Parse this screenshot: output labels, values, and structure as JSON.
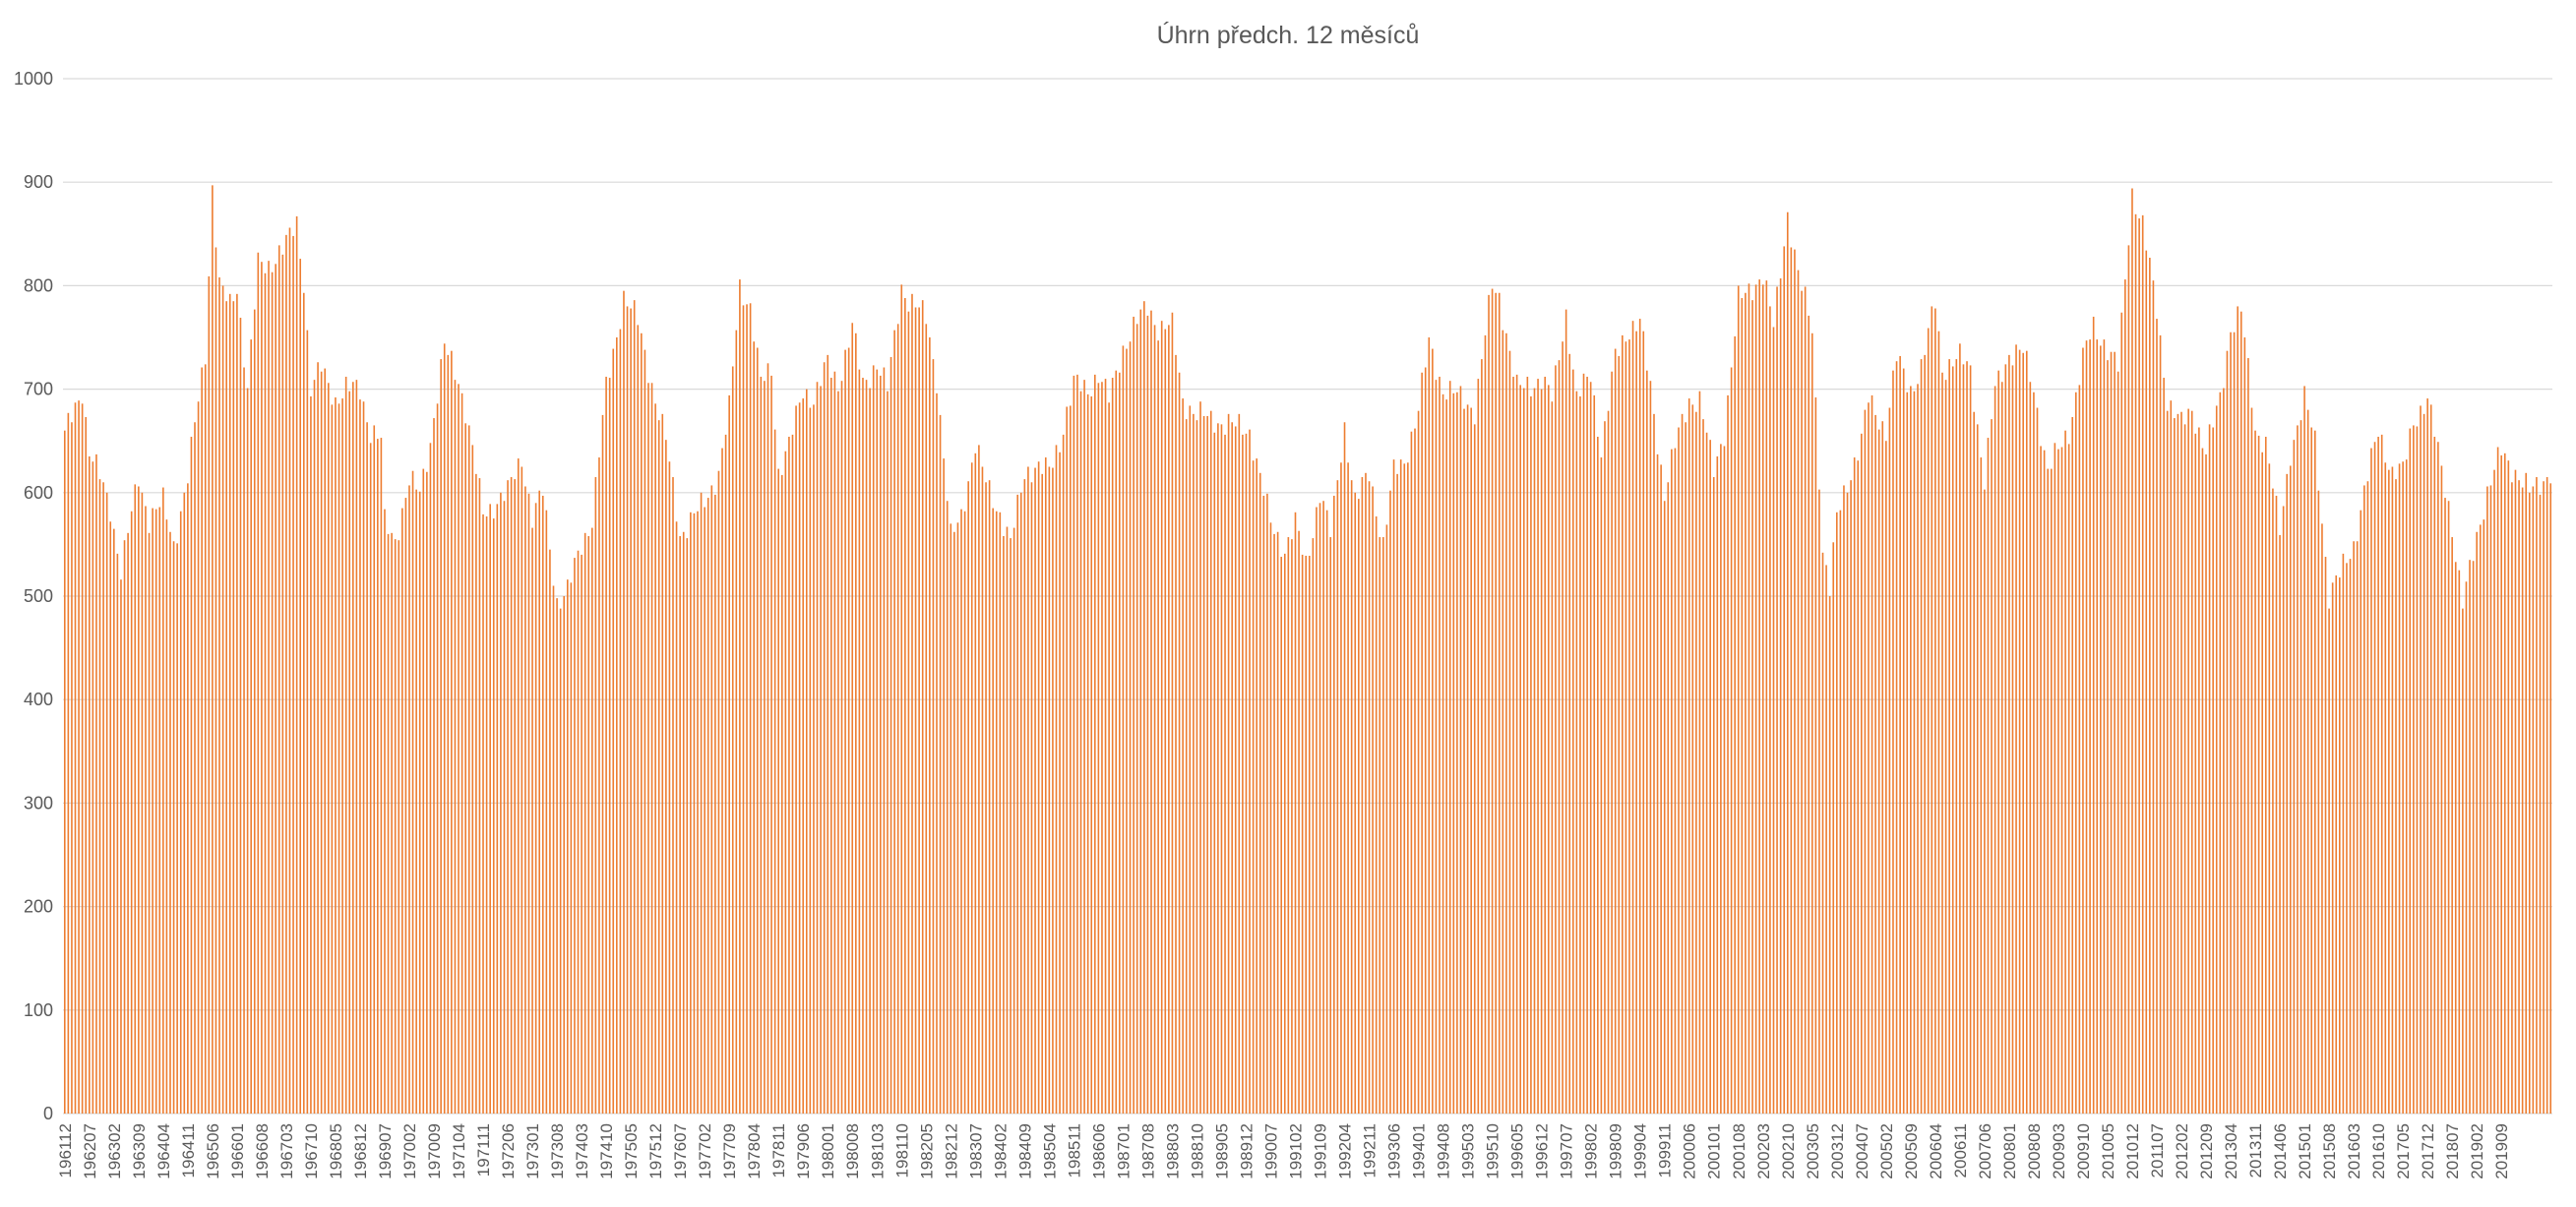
{
  "chart_data": {
    "type": "bar",
    "title": "Úhrn  předch. 12 měsíců",
    "xlabel": "",
    "ylabel": "",
    "ylim": [
      0,
      1000
    ],
    "yticks": [
      0,
      100,
      200,
      300,
      400,
      500,
      600,
      700,
      800,
      900,
      1000
    ],
    "grid": true,
    "legend": "none",
    "bar_color": "#ED7D31",
    "start_period": "196112",
    "end_period": "202011",
    "month_step": 1,
    "x_tick_labels": [
      "196112",
      "196207",
      "196302",
      "196309",
      "196404",
      "196411",
      "196506",
      "196601",
      "196608",
      "196703",
      "196710",
      "196805",
      "196812",
      "196907",
      "197002",
      "197009",
      "197104",
      "197111",
      "197206",
      "197301",
      "197308",
      "197403",
      "197410",
      "197505",
      "197512",
      "197607",
      "197702",
      "197709",
      "197804",
      "197811",
      "197906",
      "198001",
      "198008",
      "198103",
      "198110",
      "198205",
      "198212",
      "198307",
      "198402",
      "198409",
      "198504",
      "198511",
      "198606",
      "198701",
      "198708",
      "198803",
      "198810",
      "198905",
      "198912",
      "199007",
      "199102",
      "199109",
      "199204",
      "199211",
      "199306",
      "199401",
      "199408",
      "199503",
      "199510",
      "199605",
      "199612",
      "199707",
      "199802",
      "199809",
      "199904",
      "199911",
      "200006",
      "200101",
      "200108",
      "200203",
      "200210",
      "200305",
      "200312",
      "200407",
      "200502",
      "200509",
      "200604",
      "200611",
      "200706",
      "200801",
      "200808",
      "200903",
      "200910",
      "201005",
      "201012",
      "201107",
      "201202",
      "201209",
      "201304",
      "201311",
      "201406",
      "201501",
      "201508",
      "201603",
      "201610",
      "201705",
      "201712",
      "201807",
      "201902",
      "201909"
    ],
    "anchors": [
      [
        "196112",
        655
      ],
      [
        "196205",
        700
      ],
      [
        "196207",
        640
      ],
      [
        "196210",
        615
      ],
      [
        "196301",
        585
      ],
      [
        "196304",
        525
      ],
      [
        "196306",
        560
      ],
      [
        "196309",
        615
      ],
      [
        "196312",
        575
      ],
      [
        "196404",
        590
      ],
      [
        "196407",
        550
      ],
      [
        "196411",
        615
      ],
      [
        "196502",
        690
      ],
      [
        "196504",
        735
      ],
      [
        "196506",
        895
      ],
      [
        "196508",
        800
      ],
      [
        "196511",
        780
      ],
      [
        "196601",
        800
      ],
      [
        "196604",
        700
      ],
      [
        "196607",
        820
      ],
      [
        "196610",
        820
      ],
      [
        "196703",
        840
      ],
      [
        "196706",
        860
      ],
      [
        "196708",
        805
      ],
      [
        "196710",
        700
      ],
      [
        "196801",
        720
      ],
      [
        "196805",
        690
      ],
      [
        "196808",
        700
      ],
      [
        "196812",
        700
      ],
      [
        "196903",
        660
      ],
      [
        "196906",
        650
      ],
      [
        "196907",
        570
      ],
      [
        "196910",
        555
      ],
      [
        "197002",
        610
      ],
      [
        "197005",
        600
      ],
      [
        "197008",
        650
      ],
      [
        "197012",
        740
      ],
      [
        "197104",
        710
      ],
      [
        "197106",
        680
      ],
      [
        "197111",
        580
      ],
      [
        "197206",
        600
      ],
      [
        "197210",
        635
      ],
      [
        "197301",
        575
      ],
      [
        "197304",
        600
      ],
      [
        "197308",
        495
      ],
      [
        "197311",
        505
      ],
      [
        "197403",
        550
      ],
      [
        "197406",
        575
      ],
      [
        "197410",
        700
      ],
      [
        "197503",
        790
      ],
      [
        "197507",
        765
      ],
      [
        "197512",
        690
      ],
      [
        "197603",
        650
      ],
      [
        "197607",
        560
      ],
      [
        "197702",
        590
      ],
      [
        "197706",
        620
      ],
      [
        "197709",
        680
      ],
      [
        "197712",
        800
      ],
      [
        "197803",
        780
      ],
      [
        "197806",
        705
      ],
      [
        "197809",
        720
      ],
      [
        "197811",
        620
      ],
      [
        "197902",
        645
      ],
      [
        "197906",
        700
      ],
      [
        "197909",
        690
      ],
      [
        "198001",
        725
      ],
      [
        "198004",
        705
      ],
      [
        "198008",
        760
      ],
      [
        "198011",
        705
      ],
      [
        "198103",
        725
      ],
      [
        "198106",
        700
      ],
      [
        "198110",
        800
      ],
      [
        "198112",
        785
      ],
      [
        "198205",
        770
      ],
      [
        "198208",
        710
      ],
      [
        "198212",
        555
      ],
      [
        "198303",
        580
      ],
      [
        "198307",
        645
      ],
      [
        "198310",
        610
      ],
      [
        "198402",
        580
      ],
      [
        "198405",
        550
      ],
      [
        "198409",
        620
      ],
      [
        "198412",
        625
      ],
      [
        "198504",
        620
      ],
      [
        "198507",
        650
      ],
      [
        "198511",
        705
      ],
      [
        "198603",
        700
      ],
      [
        "198606",
        715
      ],
      [
        "198609",
        690
      ],
      [
        "198701",
        740
      ],
      [
        "198704",
        760
      ],
      [
        "198708",
        780
      ],
      [
        "198711",
        760
      ],
      [
        "198803",
        760
      ],
      [
        "198806",
        690
      ],
      [
        "198810",
        675
      ],
      [
        "199001",
        660
      ],
      [
        "199005",
        600
      ],
      [
        "199007",
        570
      ],
      [
        "199011",
        545
      ],
      [
        "199102",
        570
      ],
      [
        "199105",
        530
      ],
      [
        "199109",
        600
      ],
      [
        "199112",
        560
      ],
      [
        "199204",
        665
      ],
      [
        "199207",
        590
      ],
      [
        "199211",
        620
      ],
      [
        "199303",
        550
      ],
      [
        "199306",
        620
      ],
      [
        "199309",
        630
      ],
      [
        "199401",
        680
      ],
      [
        "199404",
        745
      ],
      [
        "199408",
        700
      ],
      [
        "199502",
        690
      ],
      [
        "199505",
        680
      ],
      [
        "199510",
        800
      ],
      [
        "199512",
        790
      ],
      [
        "199605",
        700
      ],
      [
        "199609",
        705
      ],
      [
        "199612",
        710
      ],
      [
        "199703",
        690
      ],
      [
        "199707",
        775
      ],
      [
        "199710",
        690
      ],
      [
        "199802",
        715
      ],
      [
        "199805",
        640
      ],
      [
        "199809",
        730
      ],
      [
        "199901",
        760
      ],
      [
        "199904",
        765
      ],
      [
        "199907",
        700
      ],
      [
        "199911",
        600
      ],
      [
        "200002",
        645
      ],
      [
        "200006",
        690
      ],
      [
        "200009",
        690
      ],
      [
        "200101",
        620
      ],
      [
        "200104",
        660
      ],
      [
        "200108",
        785
      ],
      [
        "200203",
        810
      ],
      [
        "200206",
        760
      ],
      [
        "200210",
        870
      ],
      [
        "200301",
        810
      ],
      [
        "200305",
        760
      ],
      [
        "200308",
        545
      ],
      [
        "200310",
        505
      ],
      [
        "200312",
        575
      ],
      [
        "200402",
        600
      ],
      [
        "200407",
        650
      ],
      [
        "200409",
        690
      ],
      [
        "200502",
        660
      ],
      [
        "200505",
        730
      ],
      [
        "200509",
        700
      ],
      [
        "200512",
        720
      ],
      [
        "200604",
        785
      ],
      [
        "200606",
        720
      ],
      [
        "200611",
        730
      ],
      [
        "200702",
        720
      ],
      [
        "200706",
        610
      ],
      [
        "200709",
        700
      ],
      [
        "200801",
        735
      ],
      [
        "200805",
        735
      ],
      [
        "200808",
        700
      ],
      [
        "200812",
        620
      ],
      [
        "200903",
        640
      ],
      [
        "200906",
        660
      ],
      [
        "200910",
        730
      ],
      [
        "201001",
        760
      ],
      [
        "201005",
        740
      ],
      [
        "201008",
        720
      ],
      [
        "201012",
        890
      ],
      [
        "201103",
        860
      ],
      [
        "201107",
        775
      ],
      [
        "201110",
        690
      ],
      [
        "201202",
        665
      ],
      [
        "201205",
        680
      ],
      [
        "201209",
        640
      ],
      [
        "201301",
        690
      ],
      [
        "201304",
        760
      ],
      [
        "201307",
        775
      ],
      [
        "201311",
        660
      ],
      [
        "201402",
        650
      ],
      [
        "201406",
        560
      ],
      [
        "201409",
        640
      ],
      [
        "201501",
        690
      ],
      [
        "201504",
        650
      ],
      [
        "201508",
        500
      ],
      [
        "201511",
        520
      ],
      [
        "201603",
        550
      ],
      [
        "201606",
        600
      ],
      [
        "201610",
        660
      ],
      [
        "201702",
        620
      ],
      [
        "201705",
        620
      ],
      [
        "201708",
        670
      ],
      [
        "201712",
        690
      ],
      [
        "201803",
        640
      ],
      [
        "201806",
        590
      ],
      [
        "201807",
        565
      ],
      [
        "201810",
        490
      ],
      [
        "201902",
        560
      ],
      [
        "201905",
        600
      ],
      [
        "201909",
        640
      ],
      [
        "202001",
        620
      ],
      [
        "202005",
        600
      ],
      [
        "202011",
        620
      ]
    ]
  }
}
